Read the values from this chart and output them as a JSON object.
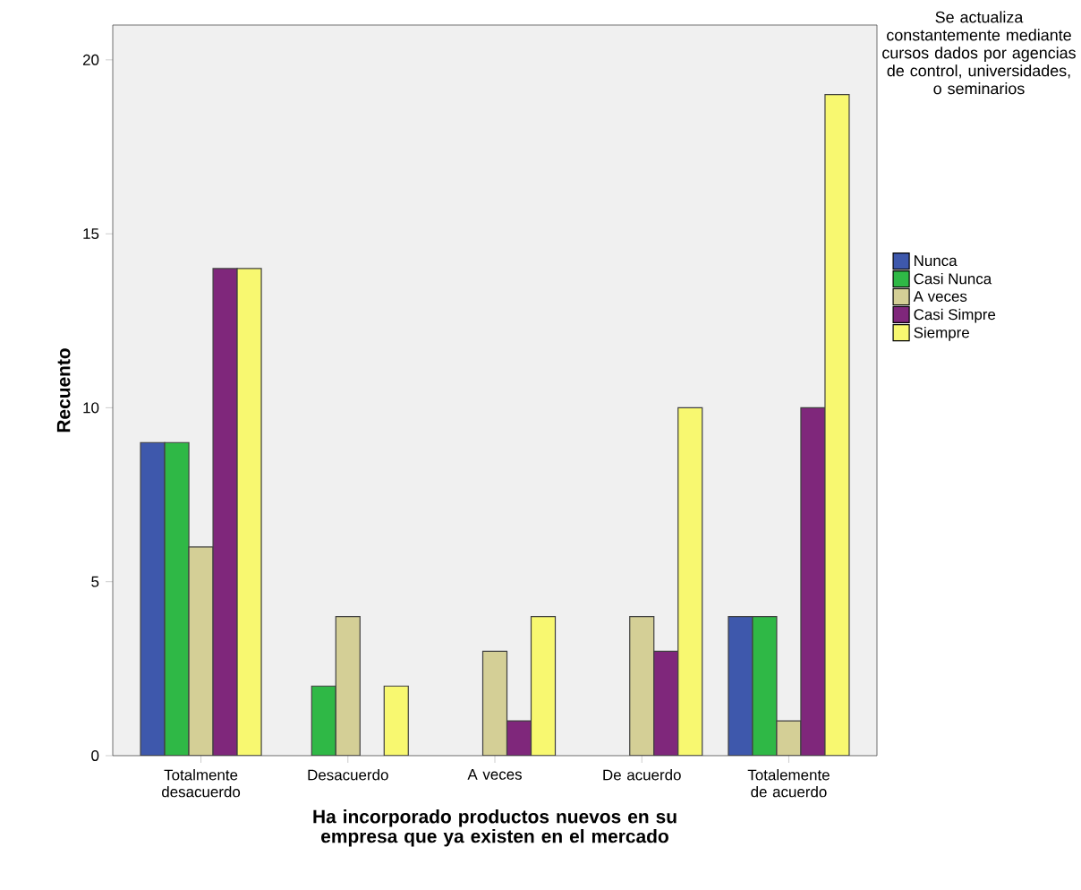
{
  "chart_data": {
    "type": "bar",
    "xlabel": "Ha incorporado productos nuevos en su empresa que ya existen en el mercado",
    "ylabel": "Recuento",
    "legend_title": "Se actualiza constantemente mediante cursos dados por agencias de control, universidades, o seminarios",
    "legend": "right",
    "grid": false,
    "categories": [
      "Totalmente desacuerdo",
      "Desacuerdo",
      "A veces",
      "De acuerdo",
      "Totalemente de acuerdo"
    ],
    "series": [
      {
        "name": "Nunca",
        "color": "#3e58ac",
        "values": [
          9,
          null,
          null,
          null,
          4
        ]
      },
      {
        "name": "Casi Nunca",
        "color": "#2fb846",
        "values": [
          9,
          2,
          null,
          null,
          4
        ]
      },
      {
        "name": "A veces",
        "color": "#d4cf96",
        "values": [
          6,
          4,
          3,
          4,
          1
        ]
      },
      {
        "name": "Casi Simpre",
        "color": "#7f277b",
        "values": [
          14,
          null,
          1,
          3,
          10
        ]
      },
      {
        "name": "Siempre",
        "color": "#f8f870",
        "values": [
          14,
          2,
          4,
          10,
          19
        ]
      }
    ],
    "ylim": [
      0,
      21
    ],
    "yticks": [
      0,
      5,
      10,
      15,
      20
    ]
  }
}
